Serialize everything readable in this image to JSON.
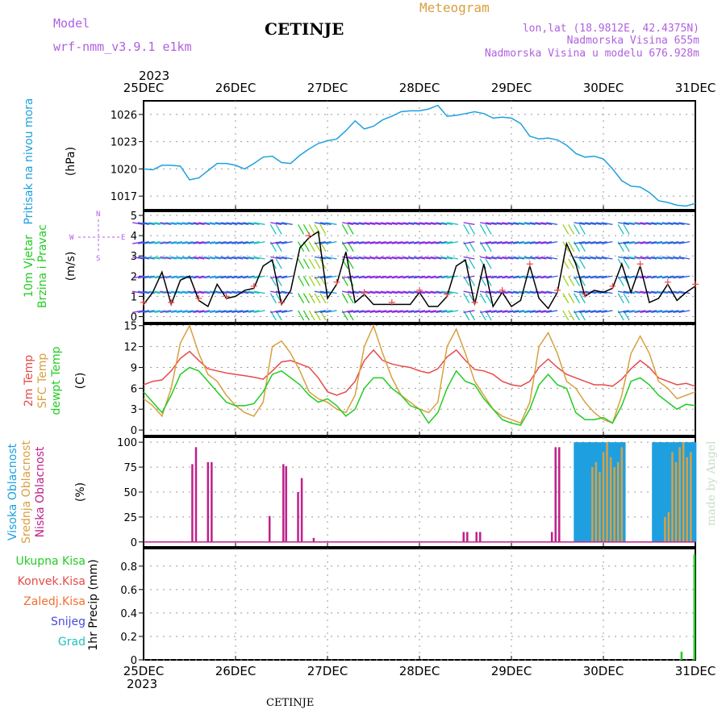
{
  "header": {
    "model_label": "Model",
    "model_name": "wrf-nmm_v3.9.1 e1km",
    "station": "CETINJE",
    "product": "Meteogram",
    "lonlat": "lon,lat (18.9812E, 42.4375N)",
    "elevation": "Nadmorska Visina 655m",
    "model_elevation": "Nadmorska Visina u modelu 676.928m",
    "footer_station": "CETINJE",
    "watermark": "made by Angel"
  },
  "time_axis": {
    "year_top": "2023",
    "year_bottom": "2023",
    "labels": [
      "25DEC",
      "26DEC",
      "27DEC",
      "28DEC",
      "29DEC",
      "30DEC",
      "31DEC"
    ]
  },
  "colors": {
    "pressure": "#1ea0e0",
    "temp2m": "#e84a4a",
    "sfc_temp": "#d8a040",
    "dewpoint": "#22cc22",
    "high_cloud": "#1ea0e0",
    "mid_cloud": "#d8a040",
    "low_cloud": "#c0208a",
    "total_precip": "#22cc22",
    "conv_precip": "#e84a4a",
    "frozen_precip": "#f07030",
    "snow": "#4a4ae0",
    "graupel": "#20c0c0",
    "wind_speed": "#000000",
    "gust_marker": "#e84a4a",
    "compass": "#b060e0"
  },
  "chart_data": [
    {
      "type": "line",
      "id": "pressure",
      "ylabel_lines": [
        "Pritisak na nivou mora"
      ],
      "unit": "(hPa)",
      "ylim": [
        1015.5,
        1027.5
      ],
      "yticks": [
        1017,
        1020,
        1023,
        1026
      ],
      "grid": true,
      "series": [
        {
          "key": "pressure",
          "x": [
            0,
            0.1,
            0.2,
            0.3,
            0.4,
            0.5,
            0.6,
            0.7,
            0.8,
            0.9,
            1,
            1.1,
            1.2,
            1.3,
            1.4,
            1.5,
            1.6,
            1.7,
            1.8,
            1.9,
            2,
            2.1,
            2.2,
            2.3,
            2.4,
            2.5,
            2.6,
            2.7,
            2.8,
            2.9,
            3,
            3.1,
            3.2,
            3.3,
            3.4,
            3.5,
            3.6,
            3.7,
            3.8,
            3.9,
            4,
            4.1,
            4.2,
            4.3,
            4.4,
            4.5,
            4.6,
            4.7,
            4.8,
            4.9,
            5,
            5.1,
            5.2,
            5.3,
            5.4,
            5.5,
            5.6,
            5.7,
            5.8,
            5.9,
            6
          ],
          "values": [
            1020.0,
            1019.9,
            1020.4,
            1020.4,
            1020.3,
            1018.8,
            1019.0,
            1019.8,
            1020.6,
            1020.6,
            1020.4,
            1020.0,
            1020.6,
            1021.3,
            1021.4,
            1020.7,
            1020.6,
            1021.5,
            1022.2,
            1022.8,
            1023.1,
            1023.3,
            1024.2,
            1025.3,
            1024.4,
            1024.7,
            1025.4,
            1025.8,
            1026.3,
            1026.4,
            1026.4,
            1026.6,
            1027.0,
            1025.8,
            1025.9,
            1026.1,
            1026.3,
            1026.1,
            1025.6,
            1025.7,
            1025.6,
            1025.0,
            1023.6,
            1023.3,
            1023.4,
            1023.2,
            1022.6,
            1021.7,
            1021.3,
            1021.4,
            1021.1,
            1020.0,
            1018.7,
            1018.1,
            1018.0,
            1017.4,
            1016.5,
            1016.3,
            1016.0,
            1015.9,
            1016.2
          ]
        }
      ]
    },
    {
      "type": "line",
      "id": "wind",
      "ylabel_lines": [
        "10m Vjetar",
        "Brzina i Pravac"
      ],
      "unit": "(m/s)",
      "compass": {
        "n": "N",
        "s": "S",
        "e": "E",
        "w": "W"
      },
      "ylim": [
        -0.3,
        5.2
      ],
      "yticks": [
        0,
        1,
        2,
        3,
        4,
        5
      ],
      "grid": true,
      "series": [
        {
          "key": "speed",
          "x": [
            0,
            0.1,
            0.2,
            0.3,
            0.4,
            0.5,
            0.6,
            0.7,
            0.8,
            0.9,
            1,
            1.1,
            1.2,
            1.3,
            1.4,
            1.5,
            1.6,
            1.7,
            1.8,
            1.9,
            2,
            2.1,
            2.2,
            2.3,
            2.4,
            2.5,
            2.6,
            2.7,
            2.8,
            2.9,
            3,
            3.1,
            3.2,
            3.3,
            3.4,
            3.5,
            3.6,
            3.7,
            3.8,
            3.9,
            4,
            4.1,
            4.2,
            4.3,
            4.4,
            4.5,
            4.6,
            4.7,
            4.8,
            4.9,
            5,
            5.1,
            5.2,
            5.3,
            5.4,
            5.5,
            5.6,
            5.7,
            5.8,
            5.9,
            6
          ],
          "values": [
            0.6,
            1.2,
            2.2,
            0.6,
            1.8,
            2.0,
            0.8,
            0.5,
            1.6,
            0.9,
            1.0,
            1.3,
            1.4,
            2.5,
            2.8,
            0.6,
            1.3,
            3.4,
            3.9,
            4.2,
            0.9,
            1.6,
            3.2,
            0.7,
            1.1,
            0.6,
            0.6,
            0.6,
            0.6,
            0.6,
            1.2,
            0.5,
            0.5,
            1.0,
            2.5,
            2.8,
            0.6,
            2.6,
            0.5,
            1.2,
            0.5,
            0.8,
            2.5,
            0.9,
            0.4,
            1.2,
            3.6,
            2.6,
            1.0,
            1.3,
            1.2,
            1.4,
            2.6,
            1.2,
            2.5,
            0.7,
            0.9,
            1.6,
            0.8,
            1.2,
            1.5
          ]
        }
      ]
    },
    {
      "type": "line",
      "id": "temperature",
      "ylabel_lines": [
        "2m Temp",
        "SFC Temp",
        "dewpt Temp"
      ],
      "unit": "(C)",
      "ylim": [
        -0.8,
        15.2
      ],
      "yticks": [
        0,
        3,
        6,
        9,
        12,
        15
      ],
      "grid": true,
      "series": [
        {
          "key": "temp2m",
          "name": "2m Temp",
          "x": [
            0,
            0.1,
            0.2,
            0.3,
            0.4,
            0.5,
            0.6,
            0.7,
            0.8,
            0.9,
            1,
            1.1,
            1.2,
            1.3,
            1.4,
            1.5,
            1.6,
            1.7,
            1.8,
            1.9,
            2,
            2.1,
            2.2,
            2.3,
            2.4,
            2.5,
            2.6,
            2.7,
            2.8,
            2.9,
            3,
            3.1,
            3.2,
            3.3,
            3.4,
            3.5,
            3.6,
            3.7,
            3.8,
            3.9,
            4,
            4.1,
            4.2,
            4.3,
            4.4,
            4.5,
            4.6,
            4.7,
            4.8,
            4.9,
            5,
            5.1,
            5.2,
            5.3,
            5.4,
            5.5,
            5.6,
            5.7,
            5.8,
            5.9,
            6
          ],
          "values": [
            6.5,
            7.0,
            7.2,
            8.5,
            10.3,
            11.3,
            10.0,
            8.8,
            8.5,
            8.2,
            8.0,
            7.8,
            7.6,
            7.3,
            8.5,
            9.8,
            10.0,
            9.5,
            9.0,
            7.5,
            5.5,
            5.0,
            5.5,
            7.0,
            10.0,
            11.5,
            10.0,
            9.5,
            9.2,
            9.0,
            8.5,
            8.2,
            8.8,
            10.5,
            11.5,
            10.0,
            8.7,
            8.5,
            8.0,
            7.0,
            6.5,
            6.3,
            7.0,
            9.0,
            10.2,
            9.0,
            8.0,
            7.5,
            7.0,
            6.5,
            6.5,
            6.3,
            7.3,
            8.8,
            10.0,
            9.0,
            7.5,
            7.0,
            6.5,
            6.7,
            6.3
          ]
        },
        {
          "key": "sfc_temp",
          "name": "SFC Temp",
          "x": [
            0,
            0.1,
            0.2,
            0.3,
            0.4,
            0.5,
            0.6,
            0.7,
            0.8,
            0.9,
            1,
            1.1,
            1.2,
            1.3,
            1.4,
            1.5,
            1.6,
            1.7,
            1.8,
            1.9,
            2,
            2.1,
            2.2,
            2.3,
            2.4,
            2.5,
            2.6,
            2.7,
            2.8,
            2.9,
            3,
            3.1,
            3.2,
            3.3,
            3.4,
            3.5,
            3.6,
            3.7,
            3.8,
            3.9,
            4,
            4.1,
            4.2,
            4.3,
            4.4,
            4.5,
            4.6,
            4.7,
            4.8,
            4.9,
            5,
            5.1,
            5.2,
            5.3,
            5.4,
            5.5,
            5.6,
            5.7,
            5.8,
            5.9,
            6
          ],
          "values": [
            4.5,
            3.5,
            2.0,
            6.0,
            12.5,
            15.0,
            11.0,
            8.0,
            7.0,
            5.0,
            3.5,
            2.5,
            2.0,
            4.0,
            12.0,
            12.8,
            11.0,
            8.5,
            5.5,
            4.5,
            4.0,
            3.0,
            2.5,
            5.0,
            12.0,
            15.0,
            11.0,
            7.5,
            5.0,
            4.0,
            3.0,
            2.5,
            4.0,
            12.0,
            14.5,
            11.0,
            7.0,
            5.0,
            3.0,
            2.0,
            1.5,
            1.0,
            4.0,
            12.0,
            14.0,
            11.0,
            7.0,
            6.0,
            4.0,
            2.5,
            1.5,
            1.0,
            5.0,
            11.0,
            13.5,
            11.0,
            7.0,
            6.0,
            4.5,
            5.0,
            5.5
          ]
        },
        {
          "key": "dewpoint",
          "name": "dewpt Temp",
          "x": [
            0,
            0.1,
            0.2,
            0.3,
            0.4,
            0.5,
            0.6,
            0.7,
            0.8,
            0.9,
            1,
            1.1,
            1.2,
            1.3,
            1.4,
            1.5,
            1.6,
            1.7,
            1.8,
            1.9,
            2,
            2.1,
            2.2,
            2.3,
            2.4,
            2.5,
            2.6,
            2.7,
            2.8,
            2.9,
            3,
            3.1,
            3.2,
            3.3,
            3.4,
            3.5,
            3.6,
            3.7,
            3.8,
            3.9,
            4,
            4.1,
            4.2,
            4.3,
            4.4,
            4.5,
            4.6,
            4.7,
            4.8,
            4.9,
            5,
            5.1,
            5.2,
            5.3,
            5.4,
            5.5,
            5.6,
            5.7,
            5.8,
            5.9,
            6
          ],
          "values": [
            5.5,
            4.0,
            2.5,
            5.0,
            8.0,
            9.0,
            8.5,
            7.0,
            5.5,
            4.0,
            3.5,
            3.5,
            3.8,
            5.5,
            8.0,
            8.5,
            7.5,
            6.5,
            5.0,
            4.0,
            4.5,
            3.5,
            2.0,
            3.0,
            6.0,
            7.5,
            7.5,
            6.0,
            5.0,
            3.5,
            3.0,
            1.0,
            2.5,
            6.0,
            8.5,
            7.0,
            6.5,
            4.5,
            3.0,
            1.5,
            1.0,
            0.7,
            3.0,
            6.5,
            8.0,
            6.5,
            6.0,
            2.5,
            1.5,
            1.5,
            1.8,
            1.0,
            3.5,
            7.0,
            7.5,
            6.5,
            5.0,
            4.0,
            3.0,
            3.7,
            3.5
          ]
        }
      ]
    },
    {
      "type": "bar",
      "id": "clouds",
      "ylabel_lines": [
        "Visoka Oblacnost",
        "Srednja Oblacnost",
        "Niska Oblacnost"
      ],
      "unit": "(%)",
      "ylim": [
        -5,
        105
      ],
      "yticks": [
        0,
        25,
        50,
        75,
        100
      ],
      "grid": true,
      "series": [
        {
          "key": "low_cloud",
          "name": "Niska Oblacnost",
          "x": [
            0.53,
            0.57,
            0.7,
            0.74,
            1.37,
            1.52,
            1.55,
            1.68,
            1.72,
            1.85,
            3.48,
            3.52,
            3.62,
            3.66,
            4.44,
            4.48,
            4.52
          ],
          "values": [
            78,
            95,
            80,
            80,
            26,
            78,
            76,
            50,
            64,
            4,
            10,
            10,
            10,
            10,
            10,
            95,
            95
          ]
        },
        {
          "key": "high_cloud",
          "name": "Visoka Oblacnost",
          "x": [
            4.7,
            4.74,
            4.78,
            4.82,
            4.86,
            4.9,
            4.94,
            4.98,
            5.02,
            5.06,
            5.1,
            5.14,
            5.18,
            5.22,
            5.55,
            5.59,
            5.63,
            5.67,
            5.71,
            5.75,
            5.79,
            5.83,
            5.87,
            5.91,
            5.95,
            5.99
          ],
          "values": [
            100,
            100,
            100,
            100,
            100,
            100,
            100,
            100,
            100,
            100,
            100,
            100,
            100,
            100,
            100,
            100,
            100,
            100,
            100,
            100,
            100,
            100,
            100,
            100,
            100,
            100
          ]
        },
        {
          "key": "mid_cloud",
          "name": "Srednja Oblacnost",
          "x": [
            4.88,
            4.92,
            4.96,
            5.0,
            5.04,
            5.08,
            5.12,
            5.16,
            5.2,
            5.67,
            5.71,
            5.75,
            5.79,
            5.83,
            5.87,
            5.91,
            5.95
          ],
          "values": [
            75,
            80,
            70,
            90,
            100,
            85,
            75,
            80,
            95,
            25,
            30,
            90,
            80,
            95,
            100,
            85,
            90
          ]
        }
      ]
    },
    {
      "type": "bar",
      "id": "precip",
      "ylabel_lines": [
        "1hr Precip",
        "(mm)"
      ],
      "legend": [
        "Ukupna Kisa",
        "Konvek.Kisa",
        "Zaledj.Kisa",
        "Snijeg",
        "Grad"
      ],
      "ylim": [
        0,
        0.95
      ],
      "yticks": [
        0,
        0.2,
        0.4,
        0.6,
        0.8
      ],
      "grid": true,
      "series": [
        {
          "key": "total_precip",
          "name": "Ukupna Kisa",
          "x": [
            5.85,
            5.99
          ],
          "values": [
            0.07,
            0.9
          ]
        }
      ]
    }
  ]
}
